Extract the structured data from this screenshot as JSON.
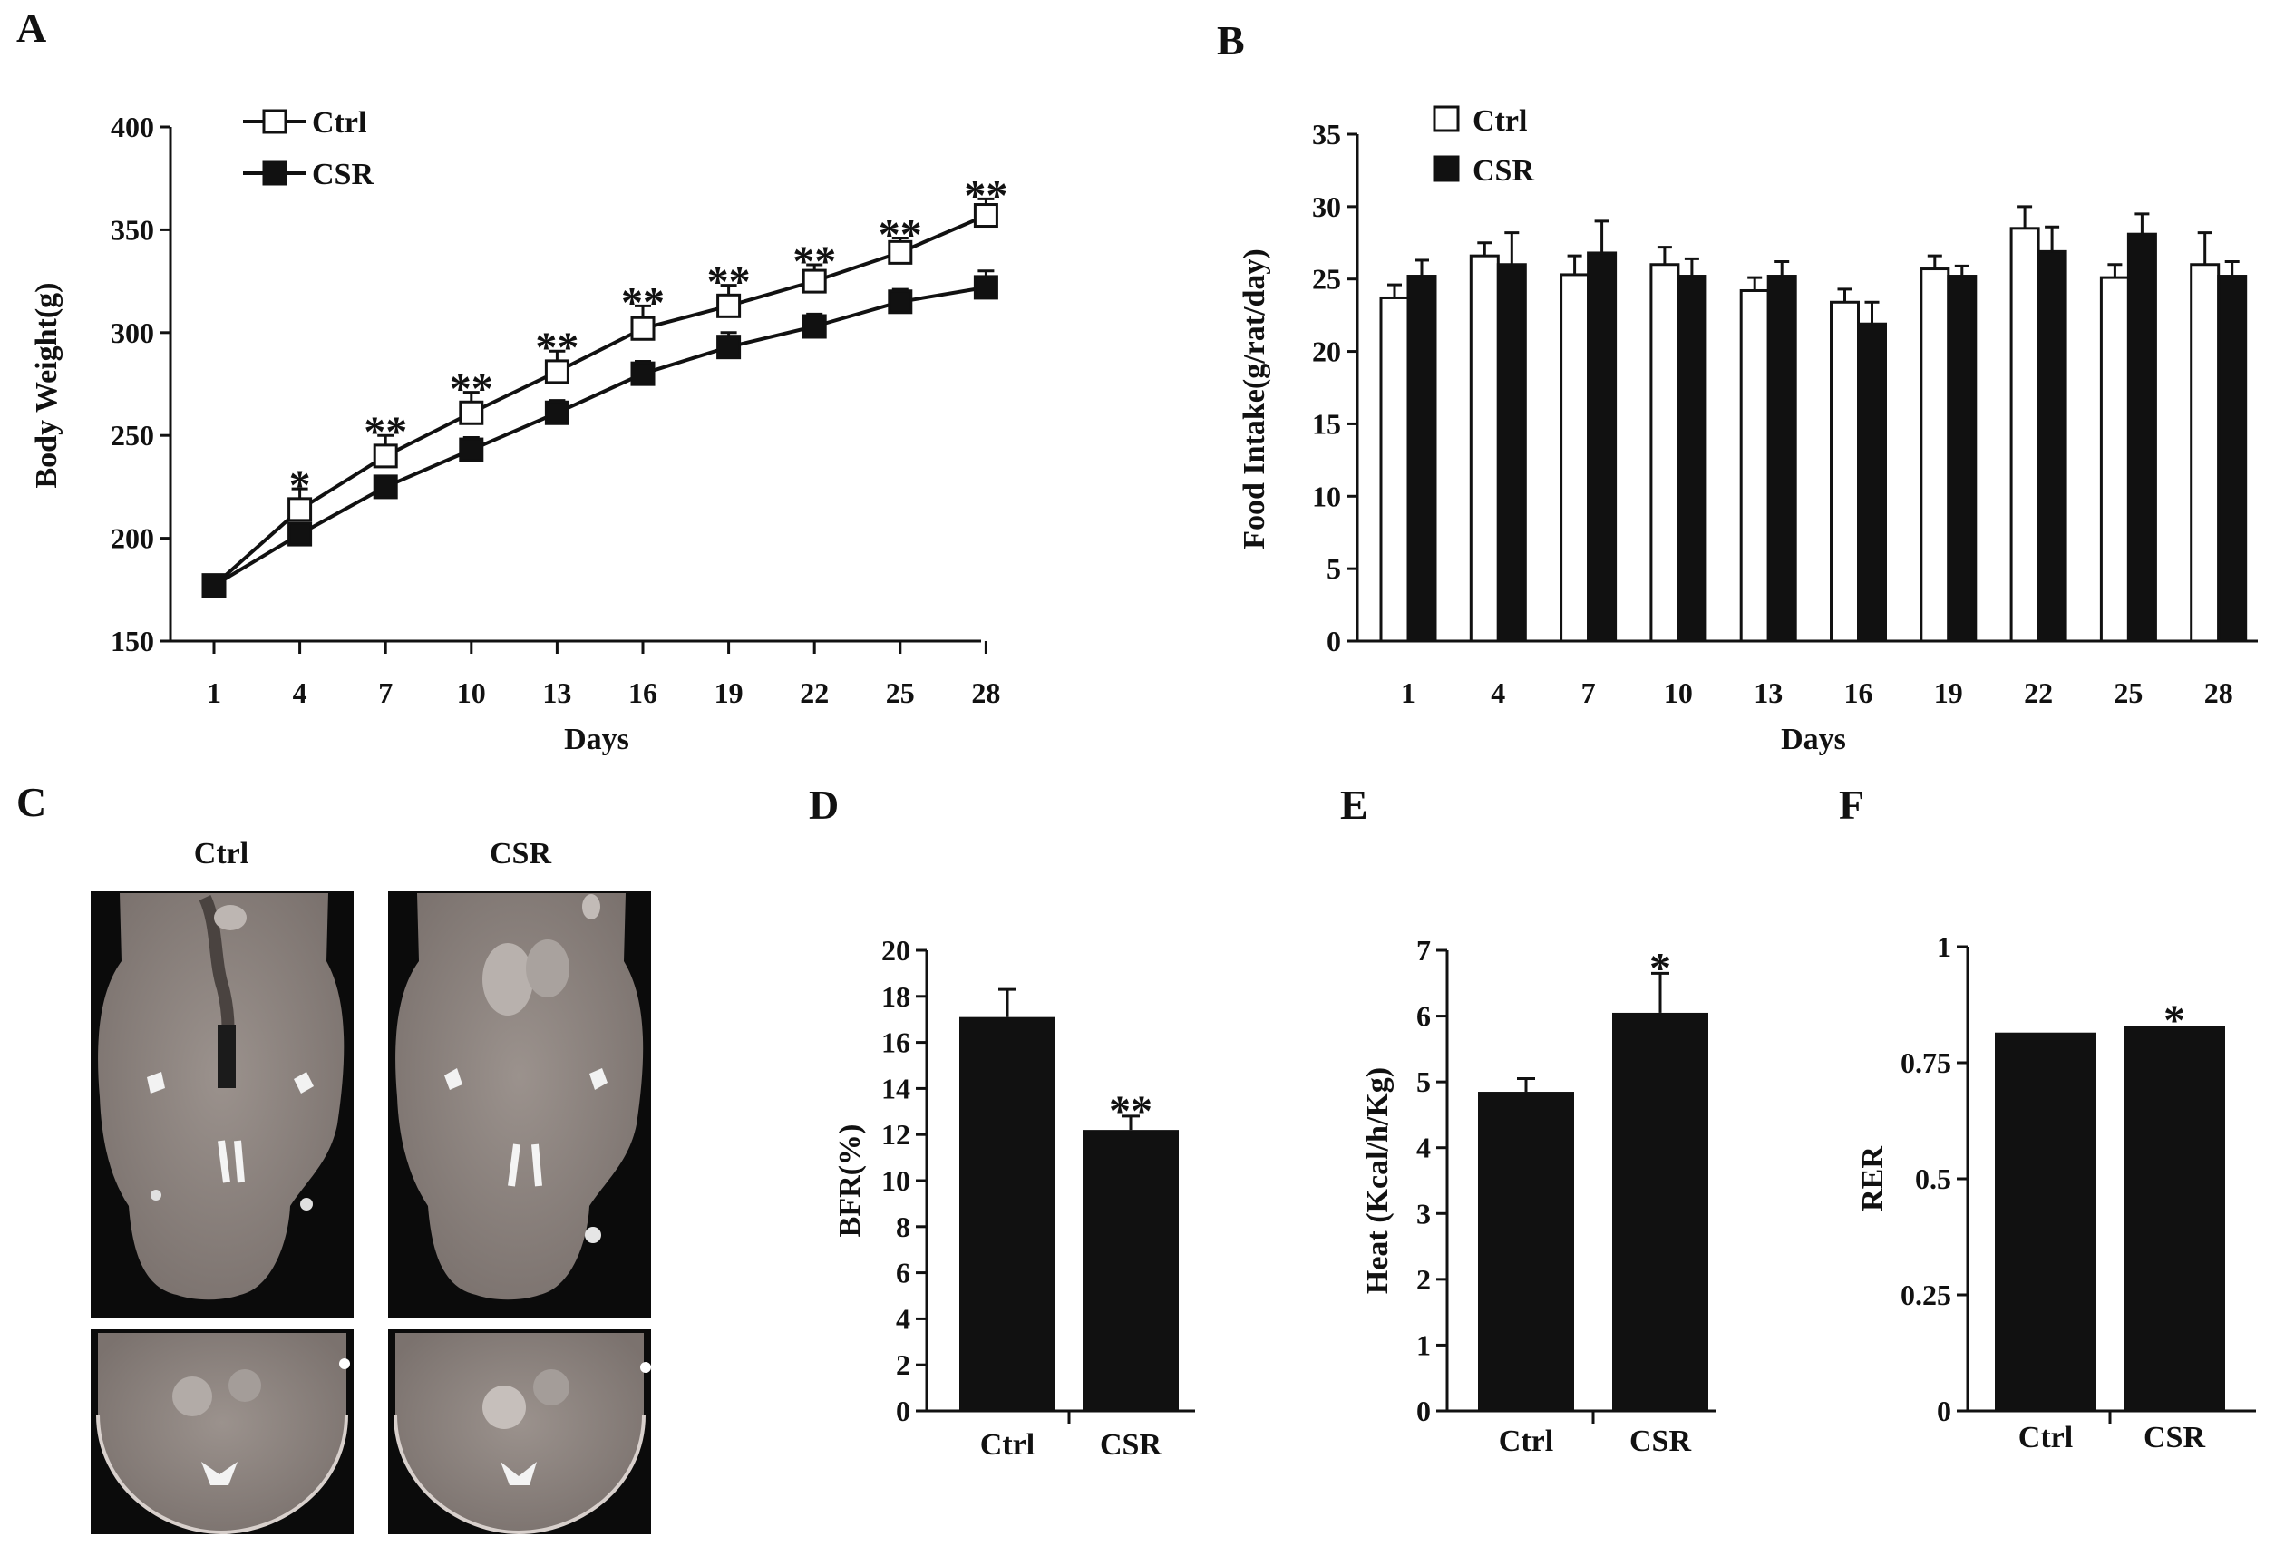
{
  "panels": {
    "a": "A",
    "b": "B",
    "c": "C",
    "d": "D",
    "e": "E",
    "f": "F"
  },
  "colors": {
    "ctrl": "#ffffff",
    "csr": "#111111",
    "axis": "#111111"
  },
  "chart_data": [
    {
      "id": "A",
      "type": "line",
      "xlabel": "Days",
      "ylabel": "Body Weight(g)",
      "x": [
        "1",
        "4",
        "7",
        "10",
        "13",
        "16",
        "19",
        "22",
        "25",
        "28"
      ],
      "ylim": [
        150,
        400
      ],
      "yticks": [
        "150",
        "200",
        "250",
        "300",
        "350",
        "400"
      ],
      "legend": [
        "Ctrl",
        "CSR"
      ],
      "series": [
        {
          "name": "Ctrl",
          "values": [
            177,
            214,
            240,
            261,
            281,
            302,
            313,
            325,
            339,
            357
          ],
          "err": [
            5,
            10,
            10,
            10,
            10,
            11,
            10,
            8,
            7,
            8
          ]
        },
        {
          "name": "CSR",
          "values": [
            177,
            202,
            225,
            243,
            261,
            280,
            293,
            303,
            315,
            322
          ],
          "err": [
            5,
            5,
            5,
            6,
            6,
            6,
            7,
            6,
            6,
            8
          ]
        }
      ],
      "annotations": [
        "",
        "*",
        "**",
        "**",
        "**",
        "**",
        "**",
        "**",
        "**",
        "**"
      ]
    },
    {
      "id": "B",
      "type": "bar",
      "xlabel": "Days",
      "ylabel": "Food Intake(g/rat/day)",
      "categories": [
        "1",
        "4",
        "7",
        "10",
        "13",
        "16",
        "19",
        "22",
        "25",
        "28"
      ],
      "ylim": [
        0,
        35
      ],
      "yticks": [
        "0",
        "5",
        "10",
        "15",
        "20",
        "25",
        "30",
        "35"
      ],
      "legend": [
        "Ctrl",
        "CSR"
      ],
      "series": [
        {
          "name": "Ctrl",
          "values": [
            23.7,
            26.6,
            25.3,
            26.0,
            24.2,
            23.4,
            25.7,
            28.5,
            25.1,
            26.0
          ],
          "err": [
            0.9,
            0.9,
            1.3,
            1.2,
            0.9,
            0.9,
            0.9,
            1.5,
            0.9,
            2.2
          ]
        },
        {
          "name": "CSR",
          "values": [
            25.2,
            26.0,
            26.8,
            25.2,
            25.2,
            21.9,
            25.2,
            26.9,
            28.1,
            25.2
          ],
          "err": [
            1.1,
            2.2,
            2.2,
            1.2,
            1.0,
            1.5,
            0.7,
            1.7,
            1.4,
            1.0
          ]
        }
      ]
    },
    {
      "id": "D",
      "type": "bar",
      "xlabel": "",
      "ylabel": "BFR(%)",
      "categories": [
        "Ctrl",
        "CSR"
      ],
      "values": [
        17.1,
        12.2
      ],
      "err": [
        1.2,
        0.6
      ],
      "ylim": [
        0,
        20
      ],
      "yticks": [
        "0",
        "2",
        "4",
        "6",
        "8",
        "10",
        "12",
        "14",
        "16",
        "18",
        "20"
      ],
      "annotations": [
        "",
        "**"
      ]
    },
    {
      "id": "E",
      "type": "bar",
      "xlabel": "",
      "ylabel": "Heat (Kcal/h/Kg)",
      "categories": [
        "Ctrl",
        "CSR"
      ],
      "values": [
        4.85,
        6.05
      ],
      "err": [
        0.2,
        0.6
      ],
      "ylim": [
        0,
        7
      ],
      "yticks": [
        "0",
        "1",
        "2",
        "3",
        "4",
        "5",
        "6",
        "7"
      ],
      "annotations": [
        "",
        "*"
      ]
    },
    {
      "id": "F",
      "type": "bar",
      "xlabel": "",
      "ylabel": "RER",
      "categories": [
        "Ctrl",
        "CSR"
      ],
      "values": [
        0.815,
        0.83
      ],
      "err": [
        0,
        0
      ],
      "ylim": [
        0,
        1
      ],
      "yticks": [
        "0",
        "0.25",
        "0.5",
        "0.75",
        "1"
      ],
      "annotations": [
        "",
        "*"
      ]
    }
  ],
  "ct_images": {
    "col_labels": [
      "Ctrl",
      "CSR"
    ]
  }
}
